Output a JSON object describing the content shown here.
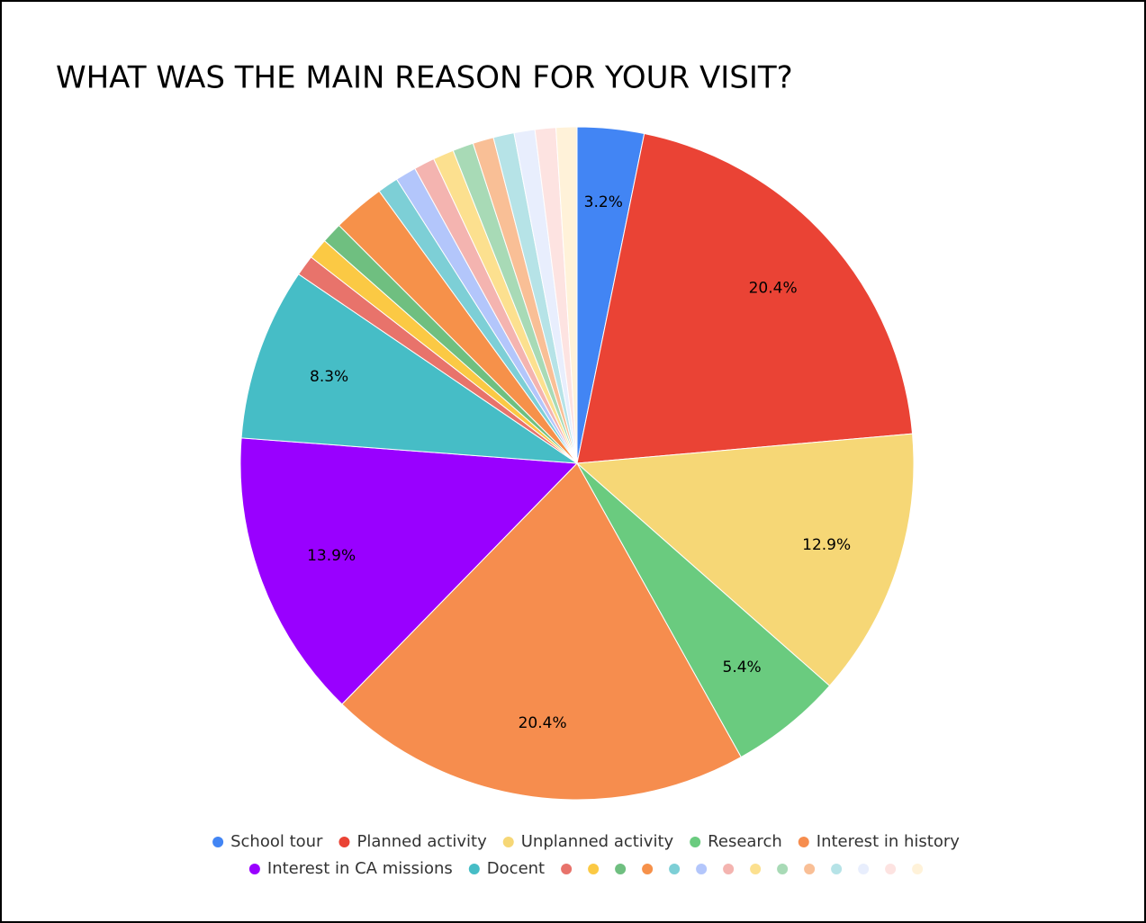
{
  "chart_data": {
    "type": "pie",
    "title": "WHAT WAS THE MAIN REASON FOR YOUR VISIT?",
    "categories": [
      "School tour",
      "Planned activity",
      "Unplanned activity",
      "Research",
      "Interest in history",
      "Interest in CA missions",
      "Docent",
      null,
      null,
      null,
      null,
      null,
      null,
      null,
      null,
      null,
      null,
      null,
      null,
      null,
      null
    ],
    "values": [
      3.2,
      20.4,
      12.9,
      5.4,
      20.4,
      13.9,
      8.3,
      1.0,
      1.0,
      1.0,
      2.5,
      1.0,
      1.0,
      1.0,
      1.0,
      1.0,
      1.0,
      1.0,
      1.0,
      1.0,
      1.0
    ],
    "value_labels": [
      "3.2%",
      "20.4%",
      "12.9%",
      "5.4%",
      "20.4%",
      "13.9%",
      "8.3%",
      null,
      null,
      null,
      null,
      null,
      null,
      null,
      null,
      null,
      null,
      null,
      null,
      null,
      null
    ],
    "colors": [
      "#4285f4",
      "#ea4335",
      "#f6d776",
      "#6acb7f",
      "#f68d4e",
      "#9900ff",
      "#46bdc6",
      "#e8736b",
      "#fbc944",
      "#6fbf80",
      "#f6914a",
      "#7dcfd6",
      "#b3c6fb",
      "#f4b4b0",
      "#fce08f",
      "#a8dab6",
      "#f9bf96",
      "#b6e3e7",
      "#e8eefd",
      "#fde3e1",
      "#fff2d9"
    ],
    "legend": "bottom"
  }
}
